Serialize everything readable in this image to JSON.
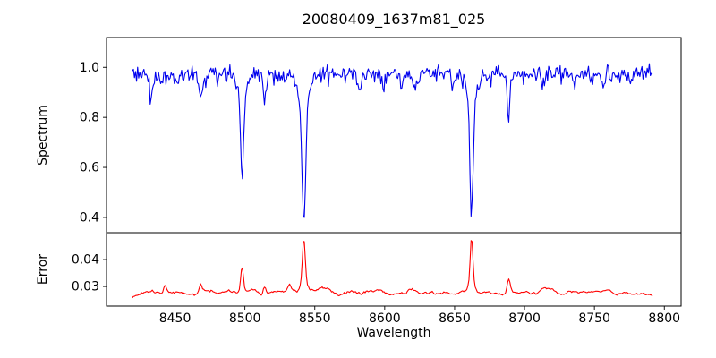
{
  "chart_data": {
    "type": "line",
    "title": "20080409_1637m81_025",
    "xlabel": "Wavelength",
    "xlim": [
      8401,
      8812
    ],
    "x_tick_values": [
      8450,
      8500,
      8550,
      8600,
      8650,
      8700,
      8750,
      8800
    ],
    "x_tick_labels": [
      "8450",
      "8500",
      "8550",
      "8600",
      "8650",
      "8700",
      "8750",
      "8800"
    ],
    "grid": false,
    "legend": "none",
    "panels": [
      {
        "name": "spectrum",
        "ylabel": "Spectrum",
        "ylim": [
          0.339,
          1.119
        ],
        "y_tick_values": [
          0.4,
          0.6,
          0.8,
          1.0
        ],
        "y_tick_labels": [
          "0.4",
          "0.6",
          "0.8",
          "1.0"
        ],
        "line_color": "#0000ee",
        "series_model": {
          "x_start": 8419.5,
          "x_end": 8792,
          "x_step": 0.75,
          "level": 0.972,
          "noise_sigma": 0.018,
          "noise_smooth": 1,
          "noise_seed": 3,
          "components": [
            {
              "c": 8433.0,
              "a": -0.085,
              "s": 1.0
            },
            {
              "c": 8440.5,
              "a": -0.05,
              "s": 0.8
            },
            {
              "c": 8452.0,
              "a": -0.04,
              "s": 0.8
            },
            {
              "c": 8468.4,
              "a": -0.095,
              "s": 1.0
            },
            {
              "c": 8498.0,
              "a": -0.345,
              "s": 1.1
            },
            {
              "c": 8498.0,
              "a": -0.075,
              "s": 3.2
            },
            {
              "c": 8514.1,
              "a": -0.12,
              "s": 0.9
            },
            {
              "c": 8542.1,
              "a": -0.5,
              "s": 1.3
            },
            {
              "c": 8542.1,
              "a": -0.1,
              "s": 4.0
            },
            {
              "c": 8582.3,
              "a": -0.05,
              "s": 0.9
            },
            {
              "c": 8598.8,
              "a": -0.065,
              "s": 0.9
            },
            {
              "c": 8611.8,
              "a": -0.06,
              "s": 0.9
            },
            {
              "c": 8621.6,
              "a": -0.07,
              "s": 0.9
            },
            {
              "c": 8648.5,
              "a": -0.045,
              "s": 0.9
            },
            {
              "c": 8662.1,
              "a": -0.46,
              "s": 1.2
            },
            {
              "c": 8662.1,
              "a": -0.095,
              "s": 3.8
            },
            {
              "c": 8688.6,
              "a": -0.155,
              "s": 1.0
            },
            {
              "c": 8713.2,
              "a": -0.05,
              "s": 0.9
            },
            {
              "c": 8736.0,
              "a": -0.045,
              "s": 0.9
            },
            {
              "c": 8757.0,
              "a": -0.045,
              "s": 0.9
            },
            {
              "c": 8776.0,
              "a": -0.04,
              "s": 0.8
            }
          ]
        }
      },
      {
        "name": "error",
        "ylabel": "Error",
        "ylim": [
          0.0227,
          0.05
        ],
        "y_tick_values": [
          0.03,
          0.04
        ],
        "y_tick_labels": [
          "0.03",
          "0.04"
        ],
        "line_color": "#ff0000",
        "series_model": {
          "x_start": 8419.5,
          "x_end": 8792,
          "x_step": 0.75,
          "level": 0.0277,
          "noise_sigma": 0.00085,
          "noise_smooth": 4,
          "noise_seed": 11,
          "components": [
            {
              "c": 8443.0,
              "a": 0.0028,
              "s": 1.2
            },
            {
              "c": 8468.4,
              "a": 0.0032,
              "s": 1.0
            },
            {
              "c": 8498.0,
              "a": 0.009,
              "s": 1.0
            },
            {
              "c": 8498.0,
              "a": 0.0015,
              "s": 2.5
            },
            {
              "c": 8514.1,
              "a": 0.0028,
              "s": 0.9
            },
            {
              "c": 8532.0,
              "a": 0.0022,
              "s": 0.9
            },
            {
              "c": 8542.1,
              "a": 0.0175,
              "s": 1.0
            },
            {
              "c": 8542.1,
              "a": 0.003,
              "s": 2.8
            },
            {
              "c": 8662.1,
              "a": 0.018,
              "s": 0.95
            },
            {
              "c": 8662.1,
              "a": 0.0028,
              "s": 2.6
            },
            {
              "c": 8688.6,
              "a": 0.0048,
              "s": 1.0
            },
            {
              "c": 8713.2,
              "a": 0.0012,
              "s": 0.9
            }
          ]
        }
      }
    ],
    "axis_color": "#000000",
    "background_color": "#ffffff"
  }
}
